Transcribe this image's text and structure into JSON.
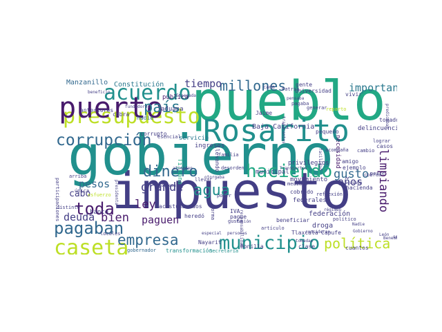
{
  "palette": {
    "navy": "#433e85",
    "purple": "#481a6c",
    "blue": "#31688e",
    "teal": "#2a788e",
    "cyan": "#21908d",
    "green": "#22a884",
    "lime": "#7ad151",
    "yellow": "#bddf26"
  },
  "words": [
    "impuesto",
    "gobierno",
    "pueblo",
    "Rosarito",
    "presupuesto",
    "acuerdo",
    "puerto",
    "corrupción",
    "caseta",
    "municipio",
    "dinero",
    "haciendo",
    "política",
    "pagaban",
    "toda",
    "empresa",
    "agua",
    "gusto",
    "país",
    "millones",
    "importante",
    "deuda",
    "pesos",
    "paguen",
    "tiempo",
    "grande",
    "años",
    "bien",
    "ley",
    "limpiando",
    "cabo",
    "Manzanillo",
    "Constitución",
    "Baja California",
    "aduana",
    "pública",
    "anteriores",
    "cobra",
    "nadie",
    "corrupto",
    "ingresos",
    "servicio",
    "necesidad",
    "federación",
    "droga",
    "delincuencia",
    "pequeño",
    "privilegios",
    "movimiento",
    "municipal",
    "federales",
    "cobrado",
    "hacienda",
    "Tijuana",
    "banco",
    "acostumbrados",
    "gente",
    "Universidad",
    "Jaime",
    "Nayarit",
    "Bonilla",
    "clase",
    "cuantos",
    "Capufe",
    "Tlaxcala",
    "IVA",
    "pague",
    "gobernador",
    "transformación",
    "Secretaría",
    "beneficiar",
    "responsabilidad",
    "llevar",
    "atienden",
    "problema",
    "otorgaba",
    "arriba",
    "única",
    "distinto",
    "locales",
    "presidenta",
    "participaciones",
    "Ensenada",
    "pagaba",
    "vivir",
    "amigo",
    "ejemplo",
    "casos",
    "tomado",
    "reparto",
    "Patria",
    "lograr",
    "consideran",
    "llevando",
    "heredó",
    "gusta",
    "mediano",
    "Transportes",
    "régimen",
    "fusión",
    "esfuerzo",
    "pensaba",
    "cada",
    "beneficio",
    "fundadores",
    "forma",
    "esencial",
    "especial",
    "personas",
    "reflexión",
    "acompaña",
    "político",
    "Benemérita",
    "Gobierno",
    "Nadie",
    "seguir",
    "León",
    "artículo",
    "tomadas",
    "desorden",
    "poder",
    "familia",
    "cambio",
    "cobran",
    "predicaban",
    "traficantes",
    "generar",
    "facilidad",
    "peaje",
    "acusado"
  ]
}
